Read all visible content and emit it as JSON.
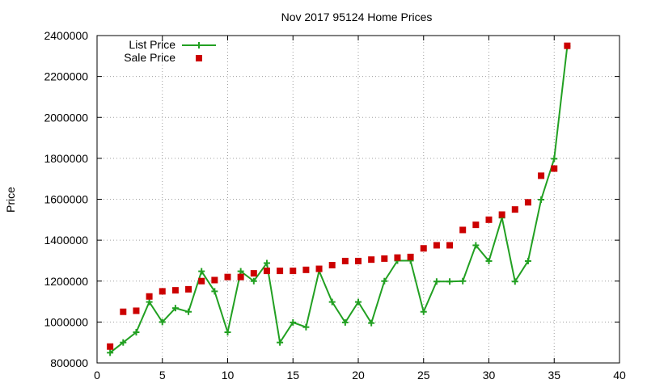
{
  "chart_data": {
    "type": "line",
    "title": "Nov 2017 95124 Home Prices",
    "xlabel": "",
    "ylabel": "Price",
    "xlim": [
      0,
      40
    ],
    "ylim": [
      800000,
      2400000
    ],
    "xticks": [
      "0",
      "5",
      "10",
      "15",
      "20",
      "25",
      "30",
      "35",
      "40"
    ],
    "yticks": [
      "800000",
      "1000000",
      "1200000",
      "1400000",
      "1600000",
      "1800000",
      "2000000",
      "2200000",
      "2400000"
    ],
    "grid": true,
    "legend_position": "top-left",
    "series": [
      {
        "name": "List Price",
        "style": "linespoints",
        "color": "#22a022",
        "x": [
          1,
          2,
          3,
          4,
          5,
          6,
          7,
          8,
          9,
          10,
          11,
          12,
          13,
          14,
          15,
          16,
          17,
          18,
          19,
          20,
          21,
          22,
          23,
          24,
          25,
          26,
          27,
          28,
          29,
          30,
          31,
          32,
          33,
          34,
          35,
          36
        ],
        "y": [
          850000,
          900000,
          950000,
          1098000,
          1000000,
          1068000,
          1050000,
          1248000,
          1150000,
          950000,
          1248000,
          1200000,
          1288000,
          900000,
          998000,
          975000,
          1250000,
          1098000,
          998000,
          1098000,
          995000,
          1200000,
          1300000,
          1300000,
          1050000,
          1198000,
          1198000,
          1200000,
          1375000,
          1298000,
          1510000,
          1198000,
          1298000,
          1598000,
          1798000,
          2348000
        ]
      },
      {
        "name": "Sale Price",
        "style": "points",
        "color": "#cc0000",
        "x": [
          1,
          2,
          3,
          4,
          5,
          6,
          7,
          8,
          9,
          10,
          11,
          12,
          13,
          14,
          15,
          16,
          17,
          18,
          19,
          20,
          21,
          22,
          23,
          24,
          25,
          26,
          27,
          28,
          29,
          30,
          31,
          32,
          33,
          34,
          35,
          36
        ],
        "y": [
          880000,
          1050000,
          1055000,
          1125000,
          1150000,
          1155000,
          1160000,
          1200000,
          1205000,
          1220000,
          1220000,
          1238000,
          1250000,
          1250000,
          1250000,
          1255000,
          1260000,
          1278000,
          1298000,
          1298000,
          1305000,
          1310000,
          1315000,
          1318000,
          1360000,
          1375000,
          1375000,
          1450000,
          1475000,
          1500000,
          1525000,
          1550000,
          1585000,
          1715000,
          1750000,
          2350000
        ]
      }
    ]
  }
}
